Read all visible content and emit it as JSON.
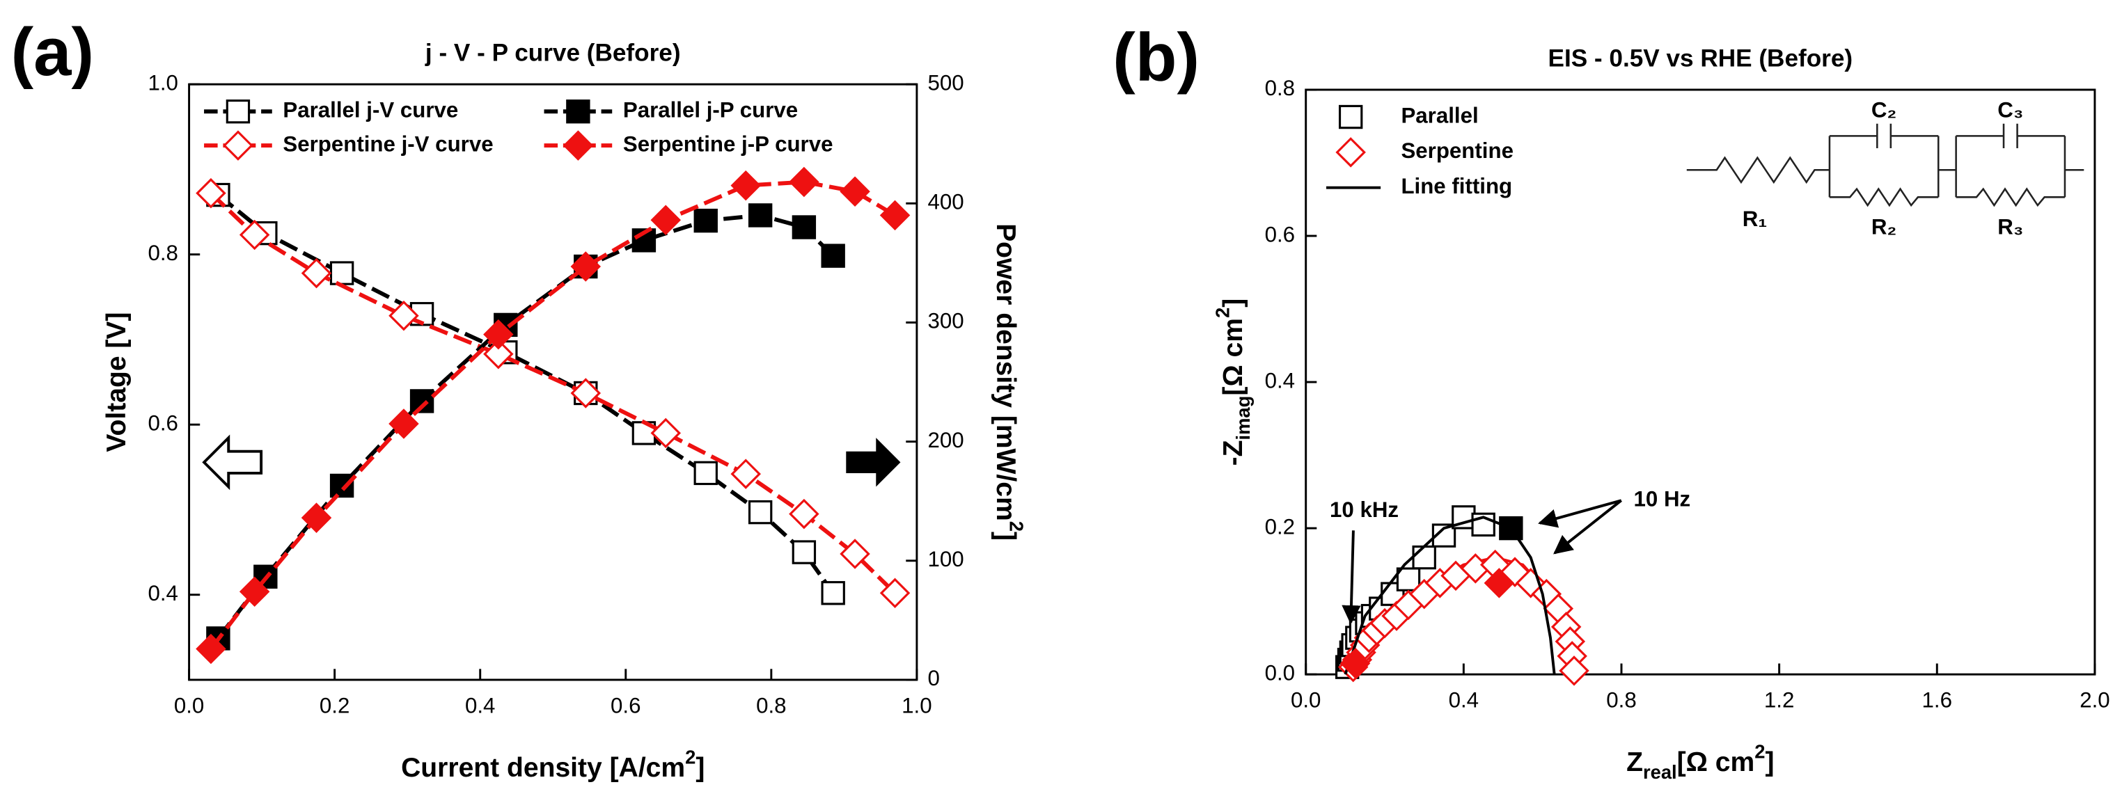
{
  "chart_data": [
    {
      "type": "line",
      "label": "(a)",
      "title": "j - V - P curve (Before)",
      "xlabel": [
        {
          "text": "Current density [A/cm"
        },
        {
          "text": "2",
          "sup": true
        },
        {
          "text": "]"
        }
      ],
      "ylabel": [
        {
          "text": "Voltage [V]"
        }
      ],
      "y2label": [
        {
          "text": "Power density [mW/cm"
        },
        {
          "text": "2",
          "sup": true
        },
        {
          "text": "]"
        }
      ],
      "xlim": [
        0,
        1
      ],
      "xticks": [
        {
          "value": 0,
          "label": "0.0"
        },
        0.2,
        0.4,
        0.6,
        0.8,
        {
          "value": 1,
          "label": "1.0"
        }
      ],
      "ylim": [
        0.3,
        1.0
      ],
      "yticks": [
        0.4,
        0.6,
        0.8,
        {
          "value": 1,
          "label": "1.0"
        }
      ],
      "y2lim": [
        0,
        500
      ],
      "y2ticks": [
        0,
        100,
        200,
        300,
        400,
        500
      ],
      "series": [
        {
          "name": "Parallel j-V curve",
          "color": "#000000",
          "marker": "square",
          "filled": false,
          "linestyle": "dashed",
          "x": [
            0.04,
            0.105,
            0.21,
            0.32,
            0.435,
            0.545,
            0.625,
            0.71,
            0.785,
            0.845,
            0.885
          ],
          "values": [
            0.87,
            0.825,
            0.778,
            0.73,
            0.685,
            0.637,
            0.59,
            0.543,
            0.497,
            0.45,
            0.402
          ]
        },
        {
          "name": "Serpentine j-V curve",
          "color": "#ee1111",
          "marker": "diamond",
          "filled": false,
          "linestyle": "dashed",
          "x": [
            0.03,
            0.09,
            0.175,
            0.295,
            0.425,
            0.545,
            0.655,
            0.765,
            0.845,
            0.915,
            0.97
          ],
          "values": [
            0.872,
            0.823,
            0.778,
            0.728,
            0.683,
            0.637,
            0.59,
            0.542,
            0.495,
            0.448,
            0.402
          ]
        },
        {
          "name": "Parallel j-P curve",
          "color": "#000000",
          "marker": "square",
          "filled": true,
          "linestyle": "dashed",
          "axis": "y2",
          "x": [
            0.04,
            0.105,
            0.21,
            0.32,
            0.435,
            0.545,
            0.625,
            0.71,
            0.785,
            0.845,
            0.885
          ],
          "values": [
            34.8,
            86.6,
            163,
            234,
            298,
            347,
            369,
            385.5,
            390,
            380,
            356
          ]
        },
        {
          "name": "Serpentine j-P curve",
          "color": "#ee1111",
          "marker": "diamond",
          "filled": true,
          "linestyle": "dashed",
          "axis": "y2",
          "x": [
            0.03,
            0.09,
            0.175,
            0.295,
            0.425,
            0.545,
            0.655,
            0.765,
            0.845,
            0.915,
            0.97
          ],
          "values": [
            26,
            74,
            136,
            215,
            290,
            347,
            386,
            415,
            418,
            410,
            390
          ]
        }
      ]
    },
    {
      "type": "scatter",
      "label": "(b)",
      "title": "EIS - 0.5V vs RHE (Before)",
      "xlabel": [
        {
          "text": "Z"
        },
        {
          "text": "real",
          "sub": true
        },
        {
          "text": "[Ω  cm"
        },
        {
          "text": "2",
          "sup": true
        },
        {
          "text": "]"
        }
      ],
      "ylabel": [
        {
          "text": "-Z"
        },
        {
          "text": "imag",
          "sub": true
        },
        {
          "text": "[Ω cm"
        },
        {
          "text": "2",
          "sup": true
        },
        {
          "text": "]"
        }
      ],
      "xlim": [
        0,
        2
      ],
      "xticks": [
        {
          "value": 0,
          "label": "0.0"
        },
        0.4,
        0.8,
        1.2,
        1.6,
        {
          "value": 2,
          "label": "2.0"
        }
      ],
      "ylim": [
        0,
        0.8
      ],
      "yticks": [
        {
          "value": 0,
          "label": "0.0"
        },
        0.2,
        0.4,
        0.6,
        0.8
      ],
      "series": [
        {
          "name": "Parallel",
          "color": "#000000",
          "marker": "square",
          "filled": false,
          "x": [
            0.105,
            0.11,
            0.115,
            0.12,
            0.13,
            0.14,
            0.155,
            0.17,
            0.19,
            0.22,
            0.26,
            0.3,
            0.35,
            0.4,
            0.45
          ],
          "values": [
            0.01,
            0.02,
            0.03,
            0.04,
            0.05,
            0.06,
            0.07,
            0.08,
            0.09,
            0.11,
            0.13,
            0.16,
            0.19,
            0.215,
            0.205
          ]
        },
        {
          "name": "Serpentine",
          "color": "#ee1111",
          "marker": "diamond",
          "filled": false,
          "x": [
            0.12,
            0.13,
            0.14,
            0.15,
            0.16,
            0.18,
            0.2,
            0.23,
            0.26,
            0.3,
            0.34,
            0.38,
            0.43,
            0.48,
            0.53,
            0.57,
            0.61,
            0.64,
            0.66,
            0.67,
            0.675,
            0.68
          ],
          "values": [
            0.01,
            0.02,
            0.03,
            0.04,
            0.05,
            0.06,
            0.07,
            0.08,
            0.095,
            0.11,
            0.125,
            0.135,
            0.145,
            0.15,
            0.14,
            0.125,
            0.11,
            0.09,
            0.065,
            0.045,
            0.025,
            0.005
          ]
        },
        {
          "name": "Line fitting",
          "color": "#000000",
          "linestyle": "solid",
          "x": [
            0.1,
            0.15,
            0.25,
            0.35,
            0.45,
            0.52,
            0.57,
            0.6,
            0.62,
            0.63
          ],
          "values": [
            0,
            0.08,
            0.15,
            0.2,
            0.215,
            0.2,
            0.16,
            0.11,
            0.05,
            0
          ]
        }
      ],
      "extra_lines": [
        {
          "color": "#ee1111",
          "x": [
            0.12,
            0.2,
            0.3,
            0.4,
            0.48,
            0.55,
            0.6
          ],
          "values": [
            0,
            0.075,
            0.12,
            0.15,
            0.16,
            0.15,
            0.12
          ]
        }
      ],
      "highlights": [
        {
          "x": 0.52,
          "y": 0.2,
          "color": "#000000",
          "marker": "square"
        },
        {
          "x": 0.49,
          "y": 0.125,
          "color": "#ee1111",
          "marker": "diamond"
        },
        {
          "x": 0.125,
          "y": 0.015,
          "color": "#ee1111",
          "marker": "diamond"
        }
      ],
      "annotations": [
        {
          "text": "10 kHz",
          "x": 0.148,
          "y": 0.223,
          "targets": [
            [
              0.114,
              0.071
            ]
          ]
        },
        {
          "text": "10 Hz",
          "x": 0.903,
          "y": 0.238,
          "targets": [
            [
              0.593,
              0.207
            ],
            [
              0.631,
              0.166
            ]
          ]
        }
      ],
      "circuit": [
        "R₁",
        "C₂",
        "R₂",
        "C₃",
        "R₃"
      ]
    }
  ]
}
